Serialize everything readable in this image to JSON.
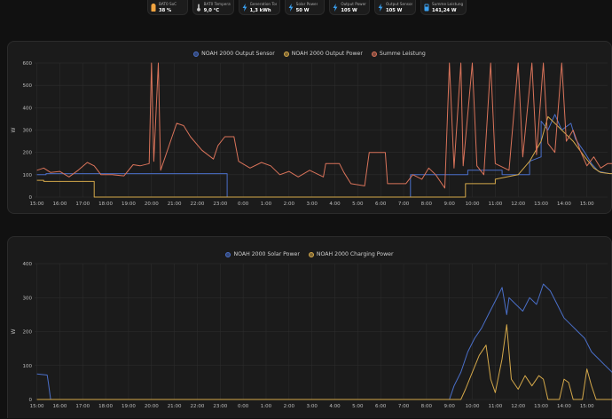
{
  "colors": {
    "blue": "#4a6fc9",
    "orange": "#d4a84a",
    "red": "#d9735a",
    "grid": "#2e2e2e",
    "tick": "#bdbdbd"
  },
  "badges": [
    {
      "label": "BAT0 SoC",
      "value": "38 %",
      "icon": "battery-icon",
      "icon_color": "#f0a340"
    },
    {
      "label": "BAT0 Temperature",
      "value": "9,0 °C",
      "icon": "thermometer-icon",
      "icon_color": "#c7c7c7"
    },
    {
      "label": "Generation Today",
      "value": "1,3 kWh",
      "icon": "lightning-icon",
      "icon_color": "#3aa0f0"
    },
    {
      "label": "Solar Power",
      "value": "50 W",
      "icon": "lightning-icon",
      "icon_color": "#3aa0f0"
    },
    {
      "label": "Output Power",
      "value": "105 W",
      "icon": "lightning-icon",
      "icon_color": "#3aa0f0"
    },
    {
      "label": "Output Sensor",
      "value": "105 W",
      "icon": "lightning-icon",
      "icon_color": "#3aa0f0"
    },
    {
      "label": "Summe Leistung",
      "value": "141,24 W",
      "icon": "meter-icon",
      "icon_color": "#3aa0f0"
    }
  ],
  "time_labels": [
    "15:00",
    "16:00",
    "17:00",
    "18:00",
    "19:00",
    "20:00",
    "21:00",
    "22:00",
    "23:00",
    "0:00",
    "1:00",
    "2:00",
    "3:00",
    "4:00",
    "5:00",
    "6:00",
    "7:00",
    "8:00",
    "9:00",
    "10:00",
    "11:00",
    "12:00",
    "13:00",
    "14:00",
    "15:00"
  ],
  "chart_data": [
    {
      "type": "line",
      "ylabel": "W",
      "ylim": [
        0,
        600
      ],
      "yticks": [
        "0",
        "100",
        "200",
        "300",
        "400",
        "500",
        "600"
      ],
      "series": [
        {
          "name": "NOAH 2000 Output Sensor",
          "color": "#4a6fc9",
          "points": [
            [
              0,
              100
            ],
            [
              0.4,
              100
            ],
            [
              0.4,
              105
            ],
            [
              8.3,
              105
            ],
            [
              8.3,
              0
            ],
            [
              16.3,
              0
            ],
            [
              16.3,
              100
            ],
            [
              18.8,
              100
            ],
            [
              18.8,
              120
            ],
            [
              20.3,
              120
            ],
            [
              20.3,
              100
            ],
            [
              21.5,
              100
            ],
            [
              21.5,
              160
            ],
            [
              22.0,
              180
            ],
            [
              22.0,
              340
            ],
            [
              22.3,
              300
            ],
            [
              22.6,
              370
            ],
            [
              22.9,
              300
            ],
            [
              23.3,
              330
            ],
            [
              23.5,
              260
            ],
            [
              23.9,
              200
            ],
            [
              24.2,
              150
            ],
            [
              24.5,
              115
            ],
            [
              25.0,
              105
            ],
            [
              25.2,
              105
            ]
          ]
        },
        {
          "name": "NOAH 2000 Output Power",
          "color": "#d4a84a",
          "points": [
            [
              0,
              75
            ],
            [
              0.3,
              75
            ],
            [
              0.3,
              70
            ],
            [
              2.5,
              70
            ],
            [
              2.5,
              0
            ],
            [
              18.7,
              0
            ],
            [
              18.7,
              60
            ],
            [
              20.0,
              60
            ],
            [
              20.0,
              80
            ],
            [
              21.0,
              100
            ],
            [
              21.5,
              160
            ],
            [
              22.0,
              250
            ],
            [
              22.3,
              360
            ],
            [
              22.6,
              330
            ],
            [
              22.9,
              300
            ],
            [
              23.4,
              250
            ],
            [
              23.9,
              180
            ],
            [
              24.3,
              130
            ],
            [
              24.6,
              110
            ],
            [
              25.0,
              105
            ],
            [
              25.2,
              105
            ]
          ]
        },
        {
          "name": "Summe Leistung",
          "color": "#d9735a",
          "points": [
            [
              0,
              120
            ],
            [
              0.3,
              130
            ],
            [
              0.6,
              110
            ],
            [
              1.0,
              115
            ],
            [
              1.4,
              90
            ],
            [
              1.8,
              120
            ],
            [
              2.2,
              155
            ],
            [
              2.5,
              140
            ],
            [
              2.8,
              100
            ],
            [
              3.3,
              100
            ],
            [
              3.8,
              95
            ],
            [
              4.2,
              145
            ],
            [
              4.5,
              140
            ],
            [
              4.9,
              150
            ],
            [
              5.0,
              600
            ],
            [
              5.1,
              160
            ],
            [
              5.3,
              600
            ],
            [
              5.4,
              120
            ],
            [
              5.6,
              180
            ],
            [
              5.9,
              270
            ],
            [
              6.1,
              330
            ],
            [
              6.4,
              320
            ],
            [
              6.7,
              270
            ],
            [
              7.2,
              210
            ],
            [
              7.7,
              170
            ],
            [
              7.9,
              230
            ],
            [
              8.2,
              270
            ],
            [
              8.6,
              270
            ],
            [
              8.8,
              160
            ],
            [
              9.3,
              130
            ],
            [
              9.8,
              155
            ],
            [
              10.2,
              140
            ],
            [
              10.6,
              100
            ],
            [
              11.0,
              115
            ],
            [
              11.4,
              90
            ],
            [
              11.9,
              120
            ],
            [
              12.5,
              90
            ],
            [
              12.6,
              150
            ],
            [
              13.2,
              150
            ],
            [
              13.4,
              110
            ],
            [
              13.7,
              60
            ],
            [
              14.3,
              50
            ],
            [
              14.5,
              200
            ],
            [
              15.2,
              200
            ],
            [
              15.3,
              60
            ],
            [
              16.1,
              60
            ],
            [
              16.4,
              100
            ],
            [
              16.8,
              80
            ],
            [
              17.1,
              130
            ],
            [
              17.4,
              100
            ],
            [
              17.8,
              40
            ],
            [
              18.0,
              600
            ],
            [
              18.2,
              130
            ],
            [
              18.5,
              600
            ],
            [
              18.6,
              140
            ],
            [
              19.0,
              600
            ],
            [
              19.2,
              140
            ],
            [
              19.5,
              100
            ],
            [
              19.8,
              600
            ],
            [
              20.0,
              150
            ],
            [
              20.6,
              120
            ],
            [
              21.0,
              600
            ],
            [
              21.2,
              180
            ],
            [
              21.6,
              600
            ],
            [
              21.8,
              190
            ],
            [
              22.1,
              600
            ],
            [
              22.3,
              240
            ],
            [
              22.6,
              200
            ],
            [
              22.9,
              600
            ],
            [
              23.1,
              250
            ],
            [
              23.4,
              300
            ],
            [
              23.7,
              210
            ],
            [
              24.0,
              140
            ],
            [
              24.3,
              180
            ],
            [
              24.6,
              130
            ],
            [
              24.9,
              150
            ],
            [
              25.2,
              150
            ]
          ]
        }
      ]
    },
    {
      "type": "line",
      "ylabel": "W",
      "ylim": [
        0,
        400
      ],
      "yticks": [
        "0",
        "100",
        "200",
        "300",
        "400"
      ],
      "series": [
        {
          "name": "NOAH 2000 Solar Power",
          "color": "#4a6fc9",
          "points": [
            [
              0,
              75
            ],
            [
              0.45,
              72
            ],
            [
              0.5,
              50
            ],
            [
              0.6,
              0
            ],
            [
              18.0,
              0
            ],
            [
              18.2,
              40
            ],
            [
              18.5,
              80
            ],
            [
              18.8,
              140
            ],
            [
              19.1,
              180
            ],
            [
              19.4,
              210
            ],
            [
              19.7,
              250
            ],
            [
              20.0,
              290
            ],
            [
              20.3,
              330
            ],
            [
              20.5,
              250
            ],
            [
              20.6,
              300
            ],
            [
              20.9,
              280
            ],
            [
              21.2,
              260
            ],
            [
              21.5,
              300
            ],
            [
              21.8,
              280
            ],
            [
              22.1,
              340
            ],
            [
              22.4,
              320
            ],
            [
              22.7,
              280
            ],
            [
              23.0,
              240
            ],
            [
              23.3,
              220
            ],
            [
              23.6,
              200
            ],
            [
              23.9,
              180
            ],
            [
              24.2,
              140
            ],
            [
              24.5,
              120
            ],
            [
              24.8,
              100
            ],
            [
              25.1,
              80
            ],
            [
              25.2,
              60
            ]
          ]
        },
        {
          "name": "NOAH 2000 Charging Power",
          "color": "#d4a84a",
          "points": [
            [
              0,
              0
            ],
            [
              18.5,
              0
            ],
            [
              18.7,
              30
            ],
            [
              19.0,
              80
            ],
            [
              19.3,
              130
            ],
            [
              19.6,
              160
            ],
            [
              19.8,
              60
            ],
            [
              20.0,
              20
            ],
            [
              20.3,
              120
            ],
            [
              20.5,
              220
            ],
            [
              20.7,
              60
            ],
            [
              21.0,
              30
            ],
            [
              21.3,
              70
            ],
            [
              21.6,
              40
            ],
            [
              21.9,
              70
            ],
            [
              22.1,
              60
            ],
            [
              22.3,
              0
            ],
            [
              22.8,
              0
            ],
            [
              23.0,
              60
            ],
            [
              23.2,
              50
            ],
            [
              23.4,
              0
            ],
            [
              23.8,
              0
            ],
            [
              24.0,
              90
            ],
            [
              24.2,
              40
            ],
            [
              24.4,
              0
            ],
            [
              25.2,
              0
            ]
          ]
        }
      ]
    }
  ]
}
